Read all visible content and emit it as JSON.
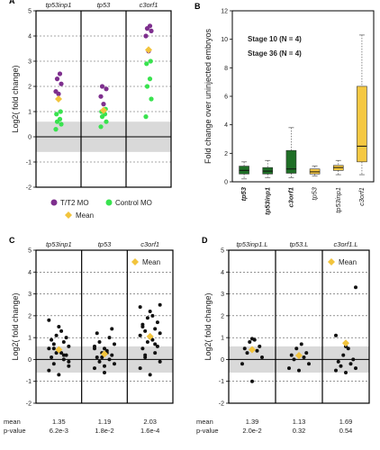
{
  "colors": {
    "purple": "#7e2f8e",
    "green": "#39e34f",
    "gold": "#f2c43c",
    "black": "#111111",
    "band": "#d9d9d9",
    "stage10": "#2e7d32",
    "stage36": "#b8960c",
    "boxGreen": "#1f6f26",
    "boxGold": "#f5c842"
  },
  "chart_data": [
    {
      "panel_label": "A",
      "type": "scatter",
      "ylabel": "Log2( fold change)",
      "ylim": [
        -2,
        5
      ],
      "yticks": [
        -2,
        -1,
        0,
        1,
        2,
        3,
        4,
        5
      ],
      "grid_band": [
        -0.6,
        0.6
      ],
      "categories": [
        "tp53inp1",
        "tp53",
        "c3orf1"
      ],
      "series": [
        {
          "name": "T/T2 MO",
          "values": [
            [
              1.7,
              1.8,
              2.1,
              2.3,
              2.5
            ],
            [
              1.3,
              1.6,
              1.9,
              2.0
            ],
            [
              3.4,
              4.0,
              4.2,
              4.3,
              4.4
            ]
          ]
        },
        {
          "name": "Control MO",
          "values": [
            [
              0.3,
              0.5,
              0.6,
              0.7,
              0.9,
              1.0
            ],
            [
              0.4,
              0.6,
              0.8,
              0.9,
              1.0,
              1.1
            ],
            [
              0.8,
              1.5,
              2.0,
              2.3,
              2.9,
              3.0
            ]
          ]
        },
        {
          "name": "Mean",
          "values": [
            1.5,
            1.05,
            3.45
          ]
        }
      ],
      "legend": [
        "T/T2 MO",
        "Control MO",
        "Mean"
      ]
    },
    {
      "panel_label": "B",
      "type": "box",
      "ylabel": "Fold change over uninjected embryos",
      "ylim": [
        0,
        12
      ],
      "yticks": [
        0,
        2,
        4,
        6,
        8,
        10,
        12
      ],
      "categories": [
        "tp53",
        "tp53inp1",
        "c3orf1",
        "tp53",
        "tp53inp1",
        "c3orf1"
      ],
      "groups": [
        "Stage 10",
        "Stage 10",
        "Stage 10",
        "Stage 36",
        "Stage 36",
        "Stage 36"
      ],
      "legend": [
        "Stage 10 (N = 4)",
        "Stage 36 (N = 4)"
      ],
      "boxes": [
        {
          "min": 0.2,
          "q1": 0.55,
          "median": 0.8,
          "q3": 1.1,
          "max": 1.4
        },
        {
          "min": 0.3,
          "q1": 0.55,
          "median": 0.75,
          "q3": 1.0,
          "max": 1.5
        },
        {
          "min": 0.3,
          "q1": 0.6,
          "median": 0.9,
          "q3": 2.2,
          "max": 3.8
        },
        {
          "min": 0.4,
          "q1": 0.55,
          "median": 0.7,
          "q3": 0.9,
          "max": 1.1
        },
        {
          "min": 0.5,
          "q1": 0.8,
          "median": 1.0,
          "q3": 1.15,
          "max": 1.5
        },
        {
          "min": 0.5,
          "q1": 1.4,
          "median": 2.5,
          "q3": 6.7,
          "max": 10.3
        }
      ]
    },
    {
      "panel_label": "C",
      "type": "scatter",
      "ylabel": "Log2( fold change)",
      "ylim": [
        -2,
        5
      ],
      "yticks": [
        -2,
        -1,
        0,
        1,
        2,
        3,
        4,
        5
      ],
      "grid_band": [
        -0.6,
        0.6
      ],
      "categories": [
        "tp53inp1",
        "tp53",
        "c3orf1"
      ],
      "series": [
        {
          "name": "points",
          "values": [
            [
              -0.7,
              -0.5,
              -0.3,
              -0.2,
              0.0,
              0.1,
              0.2,
              0.3,
              0.3,
              0.4,
              0.5,
              0.6,
              0.7,
              0.8,
              0.9,
              1.0,
              1.1,
              1.3,
              1.5,
              1.8,
              -0.1,
              0.5,
              0.2
            ],
            [
              -0.6,
              -0.4,
              -0.2,
              -0.1,
              0.0,
              0.1,
              0.2,
              0.3,
              0.4,
              0.5,
              0.6,
              0.7,
              0.8,
              1.0,
              1.2,
              1.4,
              0.1,
              0.3,
              -0.3,
              0.5
            ],
            [
              -0.7,
              -0.4,
              -0.1,
              0.1,
              0.3,
              0.5,
              0.6,
              0.8,
              0.9,
              1.0,
              1.1,
              1.2,
              1.3,
              1.4,
              1.5,
              1.7,
              1.9,
              2.0,
              2.2,
              2.4,
              2.5,
              0.2,
              0.7,
              1.6
            ]
          ]
        },
        {
          "name": "Mean",
          "values": [
            0.45,
            0.25,
            1.05
          ]
        }
      ],
      "legend": [
        "Mean"
      ],
      "stats": {
        "mean": [
          "1.35",
          "1.19",
          "2.03"
        ],
        "pvalue": [
          "6.2e-3",
          "1.8e-2",
          "1.6e-4"
        ]
      }
    },
    {
      "panel_label": "D",
      "type": "scatter",
      "ylabel": "Log2( fold change)",
      "ylim": [
        -2,
        5
      ],
      "yticks": [
        -2,
        -1,
        0,
        1,
        2,
        3,
        4,
        5
      ],
      "grid_band": [
        -0.6,
        0.6
      ],
      "categories": [
        "tp53inp1.L",
        "tp53.L",
        "c3orf1.L"
      ],
      "series": [
        {
          "name": "points",
          "values": [
            [
              -1.0,
              -0.2,
              0.1,
              0.3,
              0.4,
              0.5,
              0.6,
              0.8,
              0.9,
              0.95
            ],
            [
              -0.5,
              -0.4,
              -0.2,
              0.0,
              0.1,
              0.2,
              0.3,
              0.5,
              0.7,
              0.2
            ],
            [
              -0.6,
              -0.5,
              -0.4,
              -0.3,
              -0.2,
              -0.1,
              0.0,
              0.2,
              0.5,
              0.6,
              1.1,
              3.3
            ]
          ]
        },
        {
          "name": "Mean",
          "values": [
            0.45,
            0.18,
            0.75
          ]
        }
      ],
      "legend": [
        "Mean"
      ],
      "stats": {
        "mean": [
          "1.39",
          "1.13",
          "1.69"
        ],
        "pvalue": [
          "2.0e-2",
          "0.32",
          "0.54"
        ]
      }
    }
  ],
  "text": {
    "stat_mean_label": "mean",
    "stat_p_label": "p-value"
  }
}
